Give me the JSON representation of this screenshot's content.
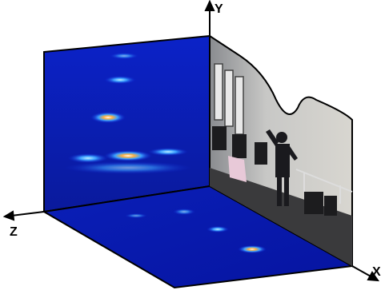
{
  "axes": {
    "x_label": "X",
    "y_label": "Y",
    "z_label": "Z"
  },
  "colors": {
    "heatmap_base": "#0a1fd6",
    "heatmap_dark": "#05108a",
    "heatmap_hot": "#ffb040",
    "axis": "#000000"
  },
  "panels": {
    "back_wall": "heatmap",
    "floor": "heatmap",
    "side_wall": "photo"
  }
}
